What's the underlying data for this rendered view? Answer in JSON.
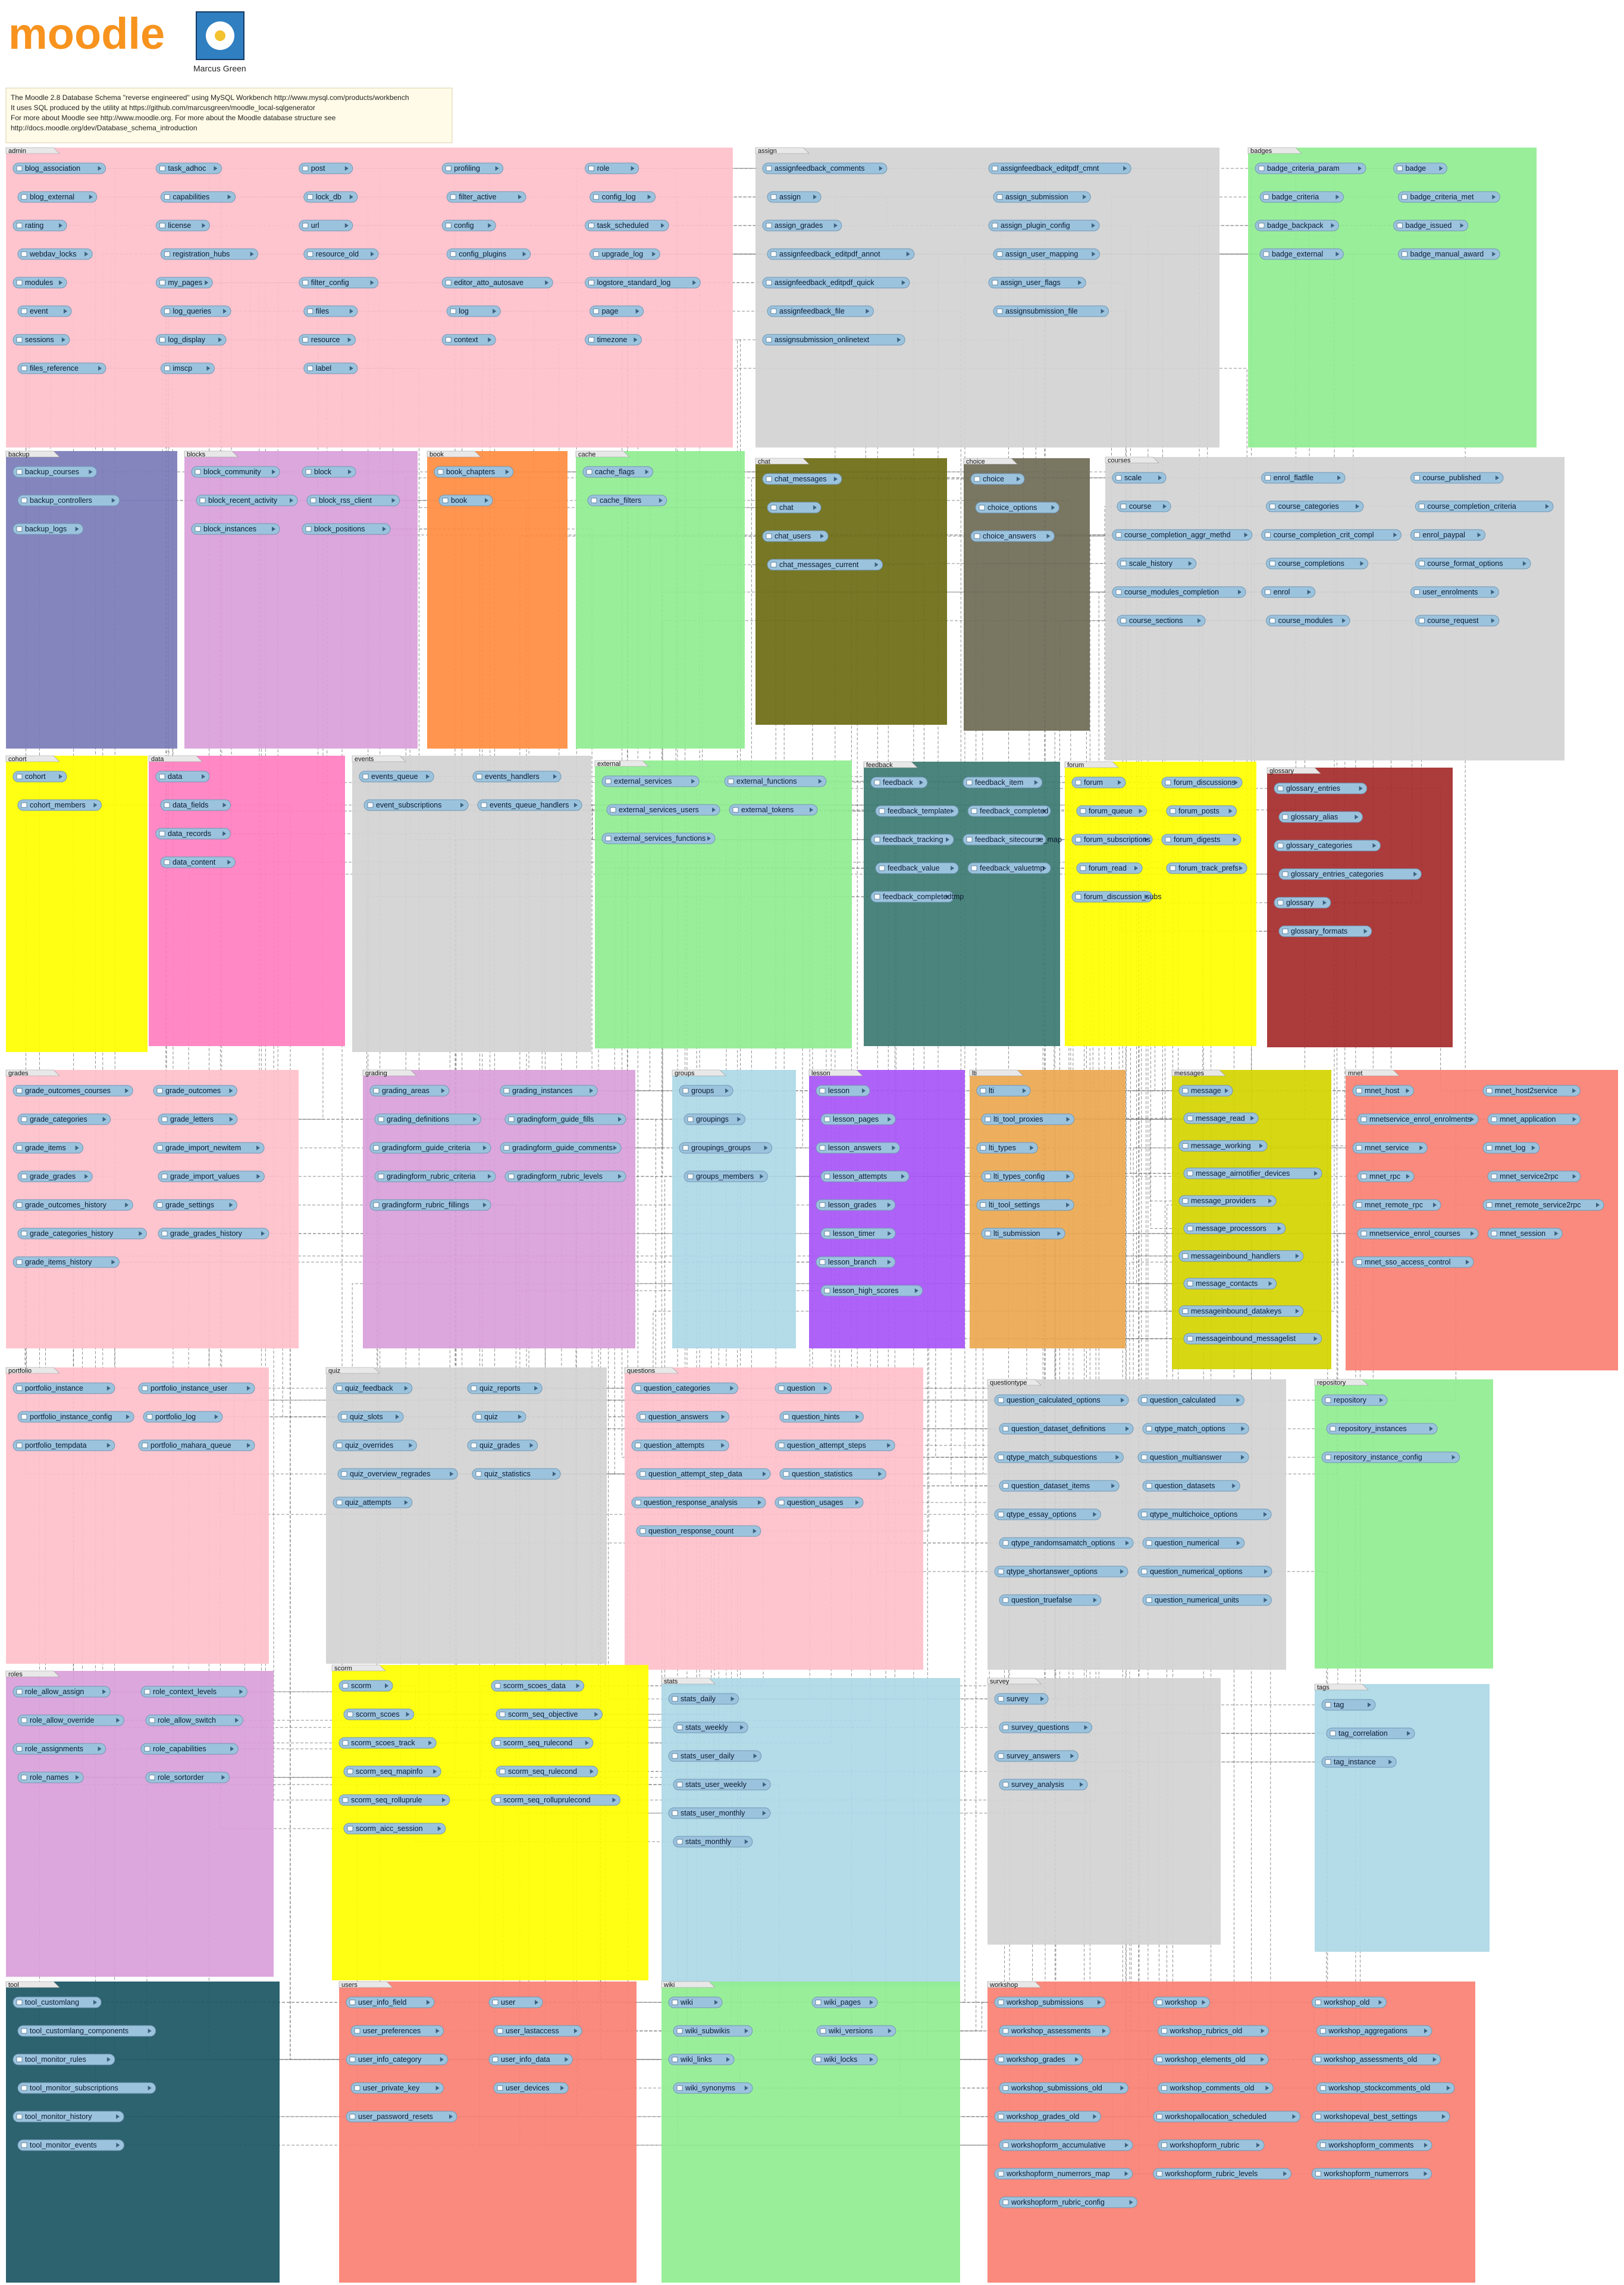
{
  "header": {
    "logo_text": "moodle",
    "author": "Marcus Green",
    "info_lines": [
      "The Moodle 2.8 Database Schema \"reverse engineered\" using MySQL Workbench http://www.mysql.com/products/workbench",
      "It uses SQL produced by the utility at https://github.com/marcusgreen/moodle_local-sqlgenerator",
      "For more about Moodle see http://www.moodle.org. For more about the Moodle database structure see",
      "http://docs.moodle.org/dev/Database_schema_introduction"
    ]
  },
  "colors": {
    "admin": "#ffc0cb",
    "assign": "#d3d3d3",
    "badges": "#90ee90",
    "backup": "#7b7bb8",
    "blocks": "#d9a0d9",
    "book": "#ff8c3f",
    "cache": "#90ee90",
    "chat": "#6b6b14",
    "choice": "#6e6a55",
    "courses": "#d3d3d3",
    "cohort": "#ffff00",
    "data": "#ff7ec0",
    "events": "#d3d3d3",
    "external": "#90ee90",
    "feedback": "#3c7a72",
    "forum": "#ffff00",
    "glossary": "#a52a2a",
    "grades": "#ffc0cb",
    "grading": "#d9a0d9",
    "groups": "#add8e6",
    "lesson": "#a855f7",
    "lti": "#eca850",
    "messages": "#d4d400",
    "mnet": "#fa8072",
    "portfolio": "#ffc0cb",
    "quiz": "#d3d3d3",
    "questions": "#ffc0cb",
    "questiontype": "#d3d3d3",
    "repository": "#90ee90",
    "roles": "#d9a0d9",
    "scorm": "#ffff00",
    "stats": "#add8e6",
    "survey": "#d3d3d3",
    "tags": "#add8e6",
    "tool": "#1b5563",
    "users": "#fa8072",
    "wiki": "#90ee90",
    "workshop": "#fa8072",
    "table_fill": "#9cc3dd",
    "table_stroke": "#6f97b5",
    "line": "#333333"
  },
  "groups": [
    {
      "label": "admin",
      "tables": [
        "blog_association",
        "task_adhoc",
        "post",
        "profiling",
        "role",
        "blog_external",
        "capabilities",
        "lock_db",
        "filter_active",
        "config_log",
        "rating",
        "license",
        "url",
        "config",
        "task_scheduled",
        "webdav_locks",
        "registration_hubs",
        "resource_old",
        "config_plugins",
        "upgrade_log",
        "modules",
        "my_pages",
        "filter_config",
        "editor_atto_autosave",
        "logstore_standard_log",
        "event",
        "log_queries",
        "files",
        "log",
        "page",
        "sessions",
        "log_display",
        "resource",
        "context",
        "timezone",
        "files_reference",
        "imscp",
        "label"
      ]
    },
    {
      "label": "assign",
      "tables": [
        "assignfeedback_comments",
        "assignfeedback_editpdf_cmnt",
        "assign",
        "assign_submission",
        "assign_grades",
        "assign_plugin_config",
        "assignfeedback_editpdf_annot",
        "assign_user_mapping",
        "assignfeedback_editpdf_quick",
        "assign_user_flags",
        "assignfeedback_file",
        "assignsubmission_file",
        "assignsubmission_onlinetext"
      ]
    },
    {
      "label": "badges",
      "tables": [
        "badge_criteria_param",
        "badge",
        "badge_criteria",
        "badge_criteria_met",
        "badge_backpack",
        "badge_issued",
        "badge_external",
        "badge_manual_award"
      ]
    },
    {
      "label": "backup",
      "tables": [
        "backup_courses",
        "backup_controllers",
        "backup_logs"
      ]
    },
    {
      "label": "blocks",
      "tables": [
        "block_community",
        "block",
        "block_recent_activity",
        "block_rss_client",
        "block_instances",
        "block_positions"
      ]
    },
    {
      "label": "book",
      "tables": [
        "book_chapters",
        "book"
      ]
    },
    {
      "label": "cache",
      "tables": [
        "cache_flags",
        "cache_filters"
      ]
    },
    {
      "label": "chat",
      "tables": [
        "chat_messages",
        "chat",
        "chat_users",
        "chat_messages_current"
      ]
    },
    {
      "label": "choice",
      "tables": [
        "choice",
        "choice_options",
        "choice_answers"
      ]
    },
    {
      "label": "courses",
      "tables": [
        "scale",
        "enrol_flatfile",
        "course_published",
        "course",
        "course_categories",
        "course_completion_criteria",
        "course_completion_aggr_methd",
        "course_completion_crit_compl",
        "enrol_paypal",
        "scale_history",
        "course_completions",
        "course_format_options",
        "course_modules_completion",
        "enrol",
        "user_enrolments",
        "course_sections",
        "course_modules",
        "course_request"
      ]
    },
    {
      "label": "cohort",
      "tables": [
        "cohort",
        "cohort_members"
      ]
    },
    {
      "label": "data",
      "tables": [
        "data",
        "data_fields",
        "data_records",
        "data_content"
      ]
    },
    {
      "label": "events",
      "tables": [
        "events_queue",
        "events_handlers",
        "event_subscriptions",
        "events_queue_handlers"
      ]
    },
    {
      "label": "external",
      "tables": [
        "external_services",
        "external_functions",
        "external_services_users",
        "external_tokens",
        "external_services_functions"
      ]
    },
    {
      "label": "feedback",
      "tables": [
        "feedback",
        "feedback_item",
        "feedback_template",
        "feedback_completed",
        "feedback_tracking",
        "feedback_sitecourse_map",
        "feedback_value",
        "feedback_valuetmp",
        "feedback_completedtmp"
      ]
    },
    {
      "label": "forum",
      "tables": [
        "forum",
        "forum_discussions",
        "forum_queue",
        "forum_posts",
        "forum_subscriptions",
        "forum_digests",
        "forum_read",
        "forum_track_prefs",
        "forum_discussion_subs"
      ]
    },
    {
      "label": "glossary",
      "tables": [
        "glossary_entries",
        "glossary_alias",
        "glossary_categories",
        "glossary_entries_categories",
        "glossary",
        "glossary_formats"
      ]
    },
    {
      "label": "grades",
      "tables": [
        "grade_outcomes_courses",
        "grade_outcomes",
        "grade_categories",
        "grade_letters",
        "grade_items",
        "grade_import_newitem",
        "grade_grades",
        "grade_import_values",
        "grade_outcomes_history",
        "grade_settings",
        "grade_categories_history",
        "grade_grades_history",
        "grade_items_history"
      ]
    },
    {
      "label": "grading",
      "tables": [
        "grading_areas",
        "grading_instances",
        "grading_definitions",
        "gradingform_guide_fills",
        "gradingform_guide_criteria",
        "gradingform_guide_comments",
        "gradingform_rubric_criteria",
        "gradingform_rubric_levels",
        "gradingform_rubric_fillings"
      ]
    },
    {
      "label": "groups",
      "tables": [
        "groups",
        "groupings",
        "groupings_groups",
        "groups_members"
      ]
    },
    {
      "label": "lesson",
      "tables": [
        "lesson",
        "lesson_pages",
        "lesson_answers",
        "lesson_attempts",
        "lesson_grades",
        "lesson_timer",
        "lesson_branch",
        "lesson_high_scores"
      ]
    },
    {
      "label": "lti",
      "tables": [
        "lti",
        "lti_tool_proxies",
        "lti_types",
        "lti_types_config",
        "lti_tool_settings",
        "lti_submission"
      ]
    },
    {
      "label": "messages",
      "tables": [
        "message",
        "message_read",
        "message_working",
        "message_airnotifier_devices",
        "message_providers",
        "message_processors",
        "messageinbound_handlers",
        "message_contacts",
        "messageinbound_datakeys",
        "messageinbound_messagelist"
      ]
    },
    {
      "label": "mnet",
      "tables": [
        "mnet_host",
        "mnet_host2service",
        "mnetservice_enrol_enrolments",
        "mnet_application",
        "mnet_service",
        "mnet_log",
        "mnet_rpc",
        "mnet_service2rpc",
        "mnet_remote_rpc",
        "mnet_remote_service2rpc",
        "mnetservice_enrol_courses",
        "mnet_session",
        "mnet_sso_access_control"
      ]
    },
    {
      "label": "portfolio",
      "tables": [
        "portfolio_instance",
        "portfolio_instance_user",
        "portfolio_instance_config",
        "portfolio_log",
        "portfolio_tempdata",
        "portfolio_mahara_queue"
      ]
    },
    {
      "label": "quiz",
      "tables": [
        "quiz_feedback",
        "quiz_reports",
        "quiz_slots",
        "quiz",
        "quiz_overrides",
        "quiz_grades",
        "quiz_overview_regrades",
        "quiz_statistics",
        "quiz_attempts"
      ]
    },
    {
      "label": "questions",
      "tables": [
        "question_categories",
        "question",
        "question_answers",
        "question_hints",
        "question_attempts",
        "question_attempt_steps",
        "question_attempt_step_data",
        "question_statistics",
        "question_response_analysis",
        "question_usages",
        "question_response_count"
      ]
    },
    {
      "label": "questiontype",
      "tables": [
        "question_calculated_options",
        "question_calculated",
        "question_dataset_definitions",
        "qtype_match_options",
        "qtype_match_subquestions",
        "question_multianswer",
        "question_dataset_items",
        "question_datasets",
        "qtype_essay_options",
        "qtype_multichoice_options",
        "qtype_randomsamatch_options",
        "question_numerical",
        "qtype_shortanswer_options",
        "question_numerical_options",
        "question_truefalse",
        "question_numerical_units"
      ]
    },
    {
      "label": "repository",
      "tables": [
        "repository",
        "repository_instances",
        "repository_instance_config"
      ]
    },
    {
      "label": "roles",
      "tables": [
        "role_allow_assign",
        "role_context_levels",
        "role_allow_override",
        "role_allow_switch",
        "role_assignments",
        "role_capabilities",
        "role_names",
        "role_sortorder"
      ]
    },
    {
      "label": "scorm",
      "tables": [
        "scorm",
        "scorm_scoes_data",
        "scorm_scoes",
        "scorm_seq_objective",
        "scorm_scoes_track",
        "scorm_seq_rulecond",
        "scorm_seq_mapinfo",
        "scorm_seq_rulecond",
        "scorm_seq_rolluprule",
        "scorm_seq_rolluprulecond",
        "scorm_aicc_session"
      ]
    },
    {
      "label": "stats",
      "tables": [
        "stats_daily",
        "stats_weekly",
        "stats_user_daily",
        "stats_user_weekly",
        "stats_user_monthly",
        "stats_monthly"
      ]
    },
    {
      "label": "survey",
      "tables": [
        "survey",
        "survey_questions",
        "survey_answers",
        "survey_analysis"
      ]
    },
    {
      "label": "tags",
      "tables": [
        "tag",
        "tag_correlation",
        "tag_instance"
      ]
    },
    {
      "label": "tool",
      "tables": [
        "tool_customlang",
        "tool_customlang_components",
        "tool_monitor_rules",
        "tool_monitor_subscriptions",
        "tool_monitor_history",
        "tool_monitor_events"
      ]
    },
    {
      "label": "users",
      "tables": [
        "user_info_field",
        "user",
        "user_preferences",
        "user_lastaccess",
        "user_info_category",
        "user_info_data",
        "user_private_key",
        "user_devices",
        "user_password_resets"
      ]
    },
    {
      "label": "wiki",
      "tables": [
        "wiki",
        "wiki_pages",
        "wiki_subwikis",
        "wiki_versions",
        "wiki_links",
        "wiki_locks",
        "wiki_synonyms"
      ]
    },
    {
      "label": "workshop",
      "tables": [
        "workshop_submissions",
        "workshop",
        "workshop_old",
        "workshop_assessments",
        "workshop_rubrics_old",
        "workshop_aggregations",
        "workshop_grades",
        "workshop_elements_old",
        "workshop_assessments_old",
        "workshop_submissions_old",
        "workshop_comments_old",
        "workshop_stockcomments_old",
        "workshop_grades_old",
        "workshopallocation_scheduled",
        "workshopeval_best_settings",
        "workshopform_accumulative",
        "workshopform_rubric",
        "workshopform_comments",
        "workshopform_numerrors_map",
        "workshopform_rubric_levels",
        "workshopform_numerrors",
        "workshopform_rubric_config"
      ]
    }
  ]
}
